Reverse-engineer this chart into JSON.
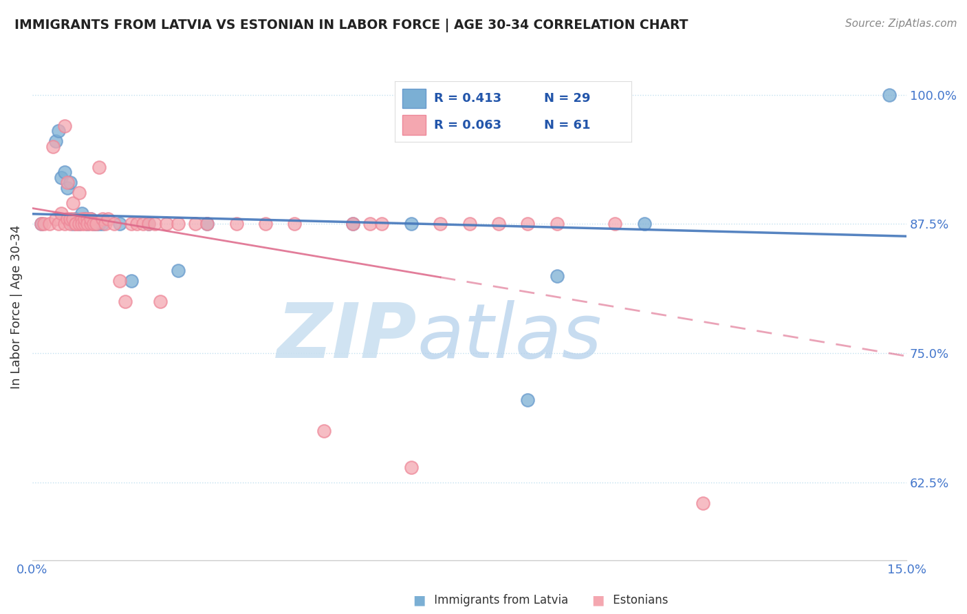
{
  "title": "IMMIGRANTS FROM LATVIA VS ESTONIAN IN LABOR FORCE | AGE 30-34 CORRELATION CHART",
  "source": "Source: ZipAtlas.com",
  "ylabel": "In Labor Force | Age 30-34",
  "xlim": [
    0.0,
    15.0
  ],
  "ylim": [
    55.0,
    104.0
  ],
  "yticks": [
    62.5,
    75.0,
    87.5,
    100.0
  ],
  "ytick_labels": [
    "62.5%",
    "75.0%",
    "87.5%",
    "100.0%"
  ],
  "xtick_labels": [
    "0.0%",
    "15.0%"
  ],
  "R_blue": 0.413,
  "N_blue": 29,
  "R_pink": 0.063,
  "N_pink": 61,
  "blue_color": "#7BAFD4",
  "blue_edge_color": "#6699CC",
  "pink_color": "#F4A7B0",
  "pink_edge_color": "#EE8899",
  "blue_line_color": "#4477BB",
  "pink_line_color": "#DD6688",
  "watermark_zip_color": "#C8DFF0",
  "watermark_atlas_color": "#B0CEEA",
  "blue_scatter_x": [
    0.15,
    0.4,
    0.45,
    0.5,
    0.55,
    0.6,
    0.65,
    0.7,
    0.75,
    0.8,
    0.85,
    0.9,
    0.95,
    1.0,
    1.05,
    1.1,
    1.15,
    1.2,
    1.5,
    1.7,
    2.0,
    2.5,
    3.0,
    5.5,
    6.5,
    8.5,
    9.0,
    10.5,
    14.7
  ],
  "blue_scatter_y": [
    87.5,
    95.5,
    96.5,
    92.0,
    92.5,
    91.0,
    91.5,
    87.5,
    88.0,
    87.5,
    88.5,
    88.0,
    87.5,
    88.0,
    87.5,
    87.5,
    87.5,
    87.5,
    87.5,
    82.0,
    87.5,
    83.0,
    87.5,
    87.5,
    87.5,
    70.5,
    82.5,
    87.5,
    100.0
  ],
  "pink_scatter_x": [
    0.15,
    0.2,
    0.3,
    0.35,
    0.4,
    0.45,
    0.5,
    0.55,
    0.55,
    0.6,
    0.6,
    0.65,
    0.65,
    0.7,
    0.7,
    0.75,
    0.75,
    0.8,
    0.8,
    0.85,
    0.85,
    0.9,
    0.9,
    0.95,
    0.95,
    1.0,
    1.0,
    1.05,
    1.1,
    1.15,
    1.2,
    1.25,
    1.3,
    1.4,
    1.5,
    1.6,
    1.7,
    1.8,
    1.9,
    2.0,
    2.1,
    2.2,
    2.3,
    2.5,
    2.8,
    3.0,
    3.5,
    4.0,
    4.5,
    5.0,
    5.5,
    5.8,
    6.0,
    6.5,
    7.0,
    7.5,
    8.0,
    8.5,
    9.0,
    10.0,
    11.5
  ],
  "pink_scatter_y": [
    87.5,
    87.5,
    87.5,
    95.0,
    88.0,
    87.5,
    88.5,
    97.0,
    87.5,
    91.5,
    88.0,
    87.5,
    88.0,
    89.5,
    88.0,
    87.5,
    87.5,
    90.5,
    87.5,
    88.0,
    87.5,
    87.5,
    88.0,
    88.0,
    87.5,
    87.5,
    88.0,
    87.5,
    87.5,
    93.0,
    88.0,
    87.5,
    88.0,
    87.5,
    82.0,
    80.0,
    87.5,
    87.5,
    87.5,
    87.5,
    87.5,
    80.0,
    87.5,
    87.5,
    87.5,
    87.5,
    87.5,
    87.5,
    87.5,
    67.5,
    87.5,
    87.5,
    87.5,
    64.0,
    87.5,
    87.5,
    87.5,
    87.5,
    87.5,
    87.5,
    60.5
  ]
}
